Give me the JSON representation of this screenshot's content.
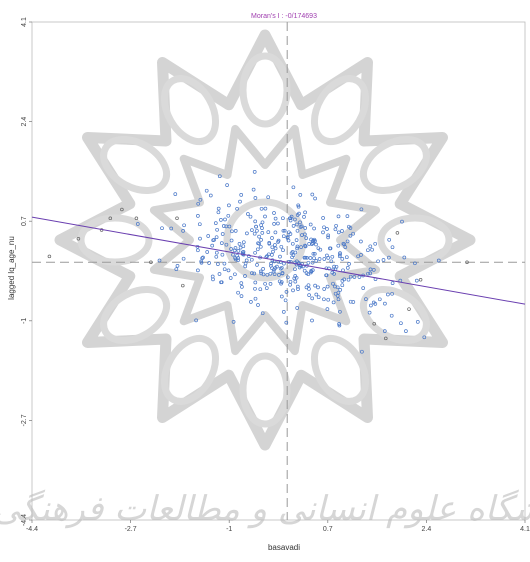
{
  "chart_data": {
    "type": "scatter",
    "title": "Moran's I : -0/174693",
    "xlabel": "basavadi",
    "ylabel": "lagged lq_age_nu",
    "xlim": [
      -4.4,
      4.1
    ],
    "ylim": [
      -4.4,
      4.1
    ],
    "x_ticks": [
      "-4.4",
      "-2.7",
      "-1",
      "0.7",
      "2.4",
      "4.1"
    ],
    "y_ticks": [
      "-4.4",
      "-2.7",
      "-1",
      "0.7",
      "2.4",
      "4.1"
    ],
    "regression_slope": -0.174693,
    "reference_lines": {
      "x": 0,
      "y": 0
    },
    "grid": false,
    "points_summary": {
      "count": 420,
      "x_center": 0.05,
      "y_center": 0.1,
      "x_spread": 0.85,
      "y_spread": 0.5,
      "covariance": -0.12
    },
    "outliers": [
      [
        -3.2,
        0.55
      ],
      [
        -3.6,
        0.4
      ],
      [
        -3.05,
        0.75
      ],
      [
        -2.85,
        0.9
      ],
      [
        -2.6,
        0.75
      ],
      [
        -4.1,
        0.1
      ],
      [
        -1.9,
        0.75
      ],
      [
        -2.35,
        0.0
      ],
      [
        -1.8,
        -0.4
      ],
      [
        2.1,
        -0.8
      ],
      [
        1.7,
        -1.3
      ],
      [
        2.3,
        -0.3
      ],
      [
        3.1,
        0.0
      ],
      [
        1.9,
        0.5
      ],
      [
        1.5,
        -1.05
      ]
    ],
    "colors": {
      "points": "#4a78c8",
      "outlier_points": "#666666",
      "regression_line": "#6a3fb0",
      "reference_lines": "#9a9a9a",
      "title": "#a040b0"
    }
  },
  "watermark": {
    "text": "پژوهشگاه علوم انسانی و مطالعات فرهنگی"
  }
}
